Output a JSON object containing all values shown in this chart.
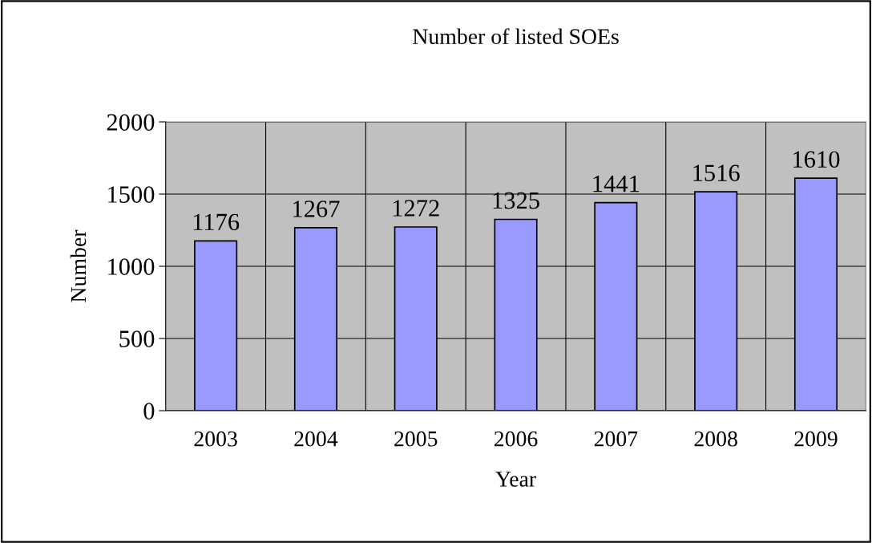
{
  "chart_data": {
    "type": "bar",
    "title": "Number of listed SOEs",
    "xlabel": "Year",
    "ylabel": "Number",
    "categories": [
      "2003",
      "2004",
      "2005",
      "2006",
      "2007",
      "2008",
      "2009"
    ],
    "values": [
      1176,
      1267,
      1272,
      1325,
      1441,
      1516,
      1610
    ],
    "color": "#9999ff",
    "ylim": [
      0,
      2000
    ],
    "yticks": [
      0,
      500,
      1000,
      1500,
      2000
    ],
    "grid": true,
    "data_labels": true
  }
}
